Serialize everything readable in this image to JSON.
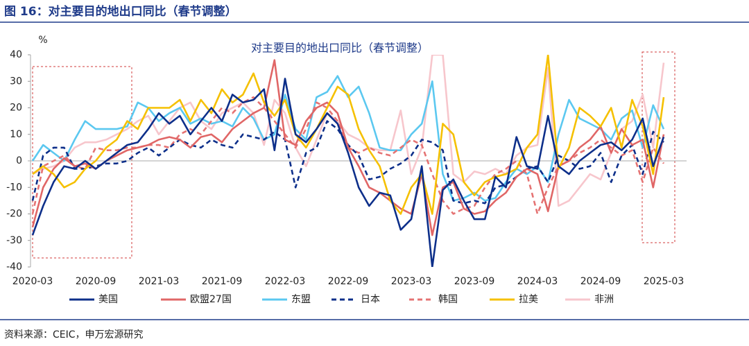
{
  "figure_title": "图 16：对主要目的地出口同比（春节调整）",
  "source": "资料来源：CEIC，申万宏源研究",
  "chart_data": {
    "type": "line",
    "title": "对主要目的地出口同比（春节调整）",
    "y_label": "%",
    "categories": [
      "2020-03",
      null,
      null,
      null,
      null,
      null,
      "2020-09",
      null,
      null,
      null,
      null,
      null,
      "2021-03",
      null,
      null,
      null,
      null,
      null,
      "2021-09",
      null,
      null,
      null,
      null,
      null,
      "2022-03",
      null,
      null,
      null,
      null,
      null,
      "2022-09",
      null,
      null,
      null,
      null,
      null,
      "2023-03",
      null,
      null,
      null,
      null,
      null,
      "2023-09",
      null,
      null,
      null,
      null,
      null,
      "2024-03",
      null,
      null,
      null,
      null,
      null,
      "2024-09",
      null,
      null,
      null,
      null,
      null,
      "2025-03"
    ],
    "ylim": [
      -40,
      40
    ],
    "yticks": [
      -40,
      -30,
      -20,
      -10,
      0,
      10,
      20,
      30,
      40
    ],
    "series": [
      {
        "name": "美国",
        "color": "#0d2f8a",
        "dash": false,
        "values": [
          -28,
          -17,
          -8,
          -2,
          -3,
          0,
          -3,
          0,
          3,
          6,
          7,
          12,
          18,
          14,
          17,
          10,
          15,
          20,
          15,
          25,
          22,
          23,
          27,
          4,
          31,
          10,
          7,
          12,
          18,
          14,
          3,
          -10,
          -17,
          -12,
          -13,
          -26,
          -22,
          -2,
          -40,
          -11,
          -7,
          -15,
          -22,
          -22,
          -6,
          -10,
          9,
          -2,
          -3,
          17,
          -2,
          -5,
          0,
          3,
          6,
          7,
          4,
          8,
          16,
          -2,
          9
        ]
      },
      {
        "name": "欧盟27国",
        "color": "#e06666",
        "dash": false,
        "values": [
          -25,
          -10,
          -3,
          1,
          -2,
          -1,
          -3,
          0,
          2,
          4,
          5,
          6,
          8,
          9,
          8,
          5,
          9,
          10,
          7,
          12,
          15,
          18,
          20,
          38,
          8,
          6,
          15,
          20,
          22,
          18,
          5,
          -2,
          -10,
          -12,
          -15,
          -18,
          -20,
          -5,
          -28,
          -10,
          -8,
          -18,
          -20,
          -19,
          -15,
          -12,
          -6,
          -3,
          -5,
          -19,
          -2,
          0,
          5,
          8,
          13,
          3,
          12,
          6,
          8,
          -10,
          10
        ]
      },
      {
        "name": "东盟",
        "color": "#5bc8f0",
        "dash": false,
        "values": [
          0,
          6,
          3,
          0,
          8,
          15,
          12,
          12,
          12,
          13,
          22,
          20,
          15,
          18,
          20,
          14,
          16,
          14,
          15,
          13,
          20,
          16,
          8,
          10,
          25,
          12,
          8,
          24,
          26,
          32,
          24,
          28,
          18,
          5,
          4,
          4,
          10,
          14,
          30,
          -5,
          -15,
          -14,
          -12,
          -15,
          -14,
          -8,
          -3,
          -5,
          -2,
          -8,
          10,
          23,
          16,
          14,
          12,
          8,
          16,
          19,
          5,
          21,
          12
        ]
      },
      {
        "name": "日本",
        "color": "#0d2f8a",
        "dash": true,
        "values": [
          -15,
          2,
          5,
          5,
          -3,
          -3,
          -2,
          -1,
          -1,
          0,
          3,
          5,
          2,
          5,
          8,
          6,
          5,
          8,
          6,
          5,
          10,
          9,
          8,
          11,
          8,
          -10,
          3,
          5,
          15,
          12,
          6,
          2,
          -7,
          -6,
          -3,
          -1,
          2,
          8,
          7,
          4,
          -15,
          -16,
          -15,
          -16,
          -10,
          -9,
          -6,
          -3,
          -2,
          -8,
          2,
          0,
          -3,
          -2,
          3,
          -8,
          2,
          6,
          -5,
          11,
          7
        ]
      },
      {
        "name": "韩国",
        "color": "#e57373",
        "dash": true,
        "values": [
          -20,
          -2,
          0,
          2,
          -2,
          -3,
          5,
          4,
          4,
          5,
          5,
          6,
          6,
          5,
          10,
          12,
          10,
          15,
          20,
          18,
          22,
          24,
          20,
          15,
          10,
          5,
          12,
          22,
          20,
          15,
          5,
          3,
          5,
          3,
          2,
          5,
          8,
          6,
          -5,
          -15,
          -20,
          -18,
          -17,
          -10,
          -5,
          -3,
          0,
          -5,
          -20,
          -10,
          -2,
          0,
          3,
          5,
          8,
          5,
          2,
          4,
          -8,
          5,
          -1
        ]
      },
      {
        "name": "拉美",
        "color": "#f5c000",
        "dash": false,
        "values": [
          -5,
          -2,
          -5,
          -10,
          -8,
          -3,
          0,
          5,
          8,
          15,
          12,
          20,
          20,
          20,
          23,
          15,
          23,
          18,
          27,
          22,
          25,
          33,
          22,
          17,
          23,
          10,
          5,
          12,
          20,
          28,
          25,
          12,
          4,
          -2,
          -15,
          -20,
          -10,
          -5,
          -20,
          14,
          10,
          -8,
          -13,
          -8,
          -6,
          -5,
          -3,
          5,
          10,
          40,
          -3,
          5,
          20,
          17,
          13,
          20,
          5,
          23,
          13,
          -5,
          24
        ]
      },
      {
        "name": "非洲",
        "color": "#f7c6cc",
        "dash": false,
        "values": [
          -5,
          -3,
          -2,
          0,
          5,
          7,
          7,
          8,
          10,
          12,
          15,
          17,
          10,
          15,
          20,
          22,
          15,
          12,
          18,
          20,
          22,
          18,
          6,
          23,
          18,
          5,
          -2,
          8,
          18,
          15,
          10,
          8,
          5,
          4,
          4,
          19,
          -5,
          5,
          40,
          40,
          -5,
          -8,
          -4,
          -5,
          -3,
          -5,
          2,
          5,
          6,
          35,
          -17,
          -15,
          -10,
          -5,
          -7,
          3,
          12,
          15,
          25,
          5,
          37
        ]
      }
    ]
  }
}
